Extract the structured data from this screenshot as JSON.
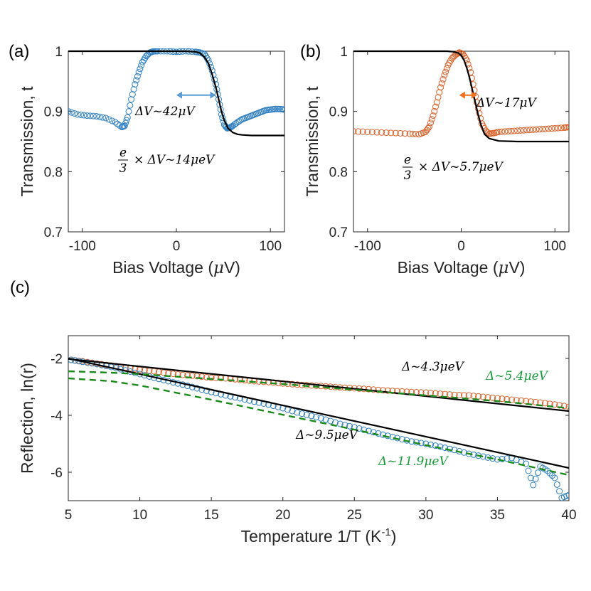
{
  "chart_data": [
    {
      "id": "a",
      "type": "scatter",
      "panel_label": "(a)",
      "xlabel_prefix": "Bias Voltage (",
      "xlabel_unit_symbol": "μ",
      "xlabel_suffix": "V)",
      "ylabel": "Transmission, t",
      "xlim": [
        -115,
        115
      ],
      "ylim": [
        0.7,
        1.0
      ],
      "xticks": [
        -100,
        0,
        100
      ],
      "yticks": [
        0.7,
        0.8,
        0.9,
        1.0
      ],
      "ytick_labels": [
        "0.7",
        "0.8",
        "0.9",
        "1"
      ],
      "colors": {
        "data": "#2f7fc1",
        "fit": "#000000",
        "arrow": "#5b9bd5"
      },
      "series": [
        {
          "name": "data",
          "style": "markers",
          "x": [
            -115,
            -105,
            -95,
            -85,
            -75,
            -65,
            -58,
            -55,
            -52,
            -48,
            -44,
            -40,
            -36,
            -32,
            -28,
            -24,
            -20,
            -10,
            0,
            10,
            20,
            25,
            30,
            34,
            38,
            42,
            45,
            48,
            51,
            54,
            57,
            60,
            65,
            70,
            75,
            80,
            85,
            90,
            95,
            100,
            105,
            110,
            115
          ],
          "y": [
            0.9,
            0.895,
            0.893,
            0.892,
            0.889,
            0.882,
            0.874,
            0.876,
            0.89,
            0.92,
            0.945,
            0.965,
            0.982,
            0.992,
            0.998,
            1.0,
            1.0,
            1.0,
            0.999,
            1.0,
            0.999,
            0.998,
            0.995,
            0.985,
            0.968,
            0.945,
            0.92,
            0.895,
            0.878,
            0.872,
            0.873,
            0.876,
            0.882,
            0.887,
            0.89,
            0.893,
            0.896,
            0.899,
            0.902,
            0.903,
            0.904,
            0.904,
            0.903
          ]
        },
        {
          "name": "fit",
          "style": "line",
          "x": [
            -115,
            10,
            20,
            25,
            30,
            34,
            38,
            42,
            45,
            48,
            51,
            55,
            60,
            65,
            70,
            80,
            115
          ],
          "y": [
            1.0,
            1.0,
            0.999,
            0.997,
            0.99,
            0.98,
            0.962,
            0.94,
            0.92,
            0.9,
            0.885,
            0.872,
            0.865,
            0.862,
            0.861,
            0.86,
            0.86
          ]
        }
      ],
      "annotations": [
        {
          "id": "dv",
          "text": "ΔV~42μV",
          "color": "#000000"
        },
        {
          "id": "energy",
          "text_prefix": "× ΔV~14μeV",
          "frac_num": "e",
          "frac_den": "3",
          "color": "#000000"
        }
      ],
      "arrow": {
        "x_from": 0,
        "x_to": 42,
        "y": 0.927
      }
    },
    {
      "id": "b",
      "type": "scatter",
      "panel_label": "(b)",
      "xlabel_prefix": "Bias Voltage (",
      "xlabel_unit_symbol": "μ",
      "xlabel_suffix": "V)",
      "ylabel": "Transmission, t",
      "xlim": [
        -115,
        115
      ],
      "ylim": [
        0.7,
        1.0
      ],
      "xticks": [
        -100,
        0,
        100
      ],
      "yticks": [
        0.7,
        0.8,
        0.9,
        1.0
      ],
      "ytick_labels": [
        "0.7",
        "0.8",
        "0.9",
        "1"
      ],
      "colors": {
        "data": "#d9622b",
        "fit": "#000000",
        "arrow": "#f07020"
      },
      "series": [
        {
          "name": "data",
          "style": "markers",
          "x": [
            -115,
            -100,
            -85,
            -70,
            -55,
            -45,
            -38,
            -34,
            -30,
            -26,
            -22,
            -18,
            -14,
            -10,
            -6,
            -2,
            2,
            6,
            10,
            14,
            18,
            22,
            26,
            30,
            35,
            40,
            50,
            60,
            70,
            80,
            90,
            100,
            110,
            115
          ],
          "y": [
            0.867,
            0.866,
            0.865,
            0.864,
            0.863,
            0.862,
            0.866,
            0.875,
            0.893,
            0.915,
            0.94,
            0.96,
            0.977,
            0.988,
            0.994,
            0.998,
            0.995,
            0.985,
            0.965,
            0.935,
            0.905,
            0.88,
            0.868,
            0.863,
            0.864,
            0.866,
            0.867,
            0.868,
            0.869,
            0.87,
            0.871,
            0.872,
            0.873,
            0.874
          ]
        },
        {
          "name": "fit",
          "style": "line",
          "x": [
            -115,
            -15,
            -8,
            -3,
            0,
            3,
            6,
            9,
            12,
            15,
            18,
            21,
            25,
            30,
            40,
            60,
            115
          ],
          "y": [
            1.0,
            1.0,
            0.999,
            0.997,
            0.993,
            0.985,
            0.972,
            0.955,
            0.935,
            0.915,
            0.895,
            0.878,
            0.862,
            0.855,
            0.851,
            0.85,
            0.85
          ]
        }
      ],
      "annotations": [
        {
          "id": "dv",
          "text": "ΔV~17μV",
          "color": "#000000"
        },
        {
          "id": "energy",
          "text_prefix": "× ΔV~5.7μeV",
          "frac_num": "e",
          "frac_den": "3",
          "color": "#000000"
        }
      ],
      "arrow": {
        "x_from": -2,
        "x_to": 17,
        "y": 0.927
      }
    },
    {
      "id": "c",
      "type": "scatter",
      "panel_label": "(c)",
      "xlabel_prefix": "Temperature 1/T (K",
      "xlabel_sup": "-1",
      "xlabel_suffix": ")",
      "ylabel": "Reflection, ln(r)",
      "xlim": [
        5,
        40
      ],
      "ylim": [
        -7,
        -1.2
      ],
      "xticks": [
        5,
        10,
        15,
        20,
        25,
        30,
        35,
        40
      ],
      "yticks": [
        -2,
        -4,
        -6
      ],
      "ytick_labels": [
        "-2",
        "-4",
        "-6"
      ],
      "colors": {
        "orange": "#d9622b",
        "blue": "#2f7fc1",
        "fit": "#000000",
        "green": "#1a8a1a"
      },
      "series": [
        {
          "name": "orange-data",
          "style": "markers",
          "color": "orange",
          "x": [
            5.2,
            6,
            7,
            8,
            9,
            10,
            11,
            12,
            13,
            14,
            15,
            16,
            17,
            18,
            19,
            20,
            21,
            22,
            23,
            24,
            25,
            26,
            27,
            28,
            29,
            30,
            31,
            32,
            33,
            34,
            35,
            36,
            37,
            38,
            39,
            40
          ],
          "y": [
            -2.05,
            -2.1,
            -2.18,
            -2.25,
            -2.32,
            -2.4,
            -2.45,
            -2.52,
            -2.58,
            -2.62,
            -2.68,
            -2.7,
            -2.75,
            -2.8,
            -2.83,
            -2.88,
            -2.92,
            -2.95,
            -2.98,
            -3.02,
            -3.05,
            -3.08,
            -3.12,
            -3.15,
            -3.18,
            -3.2,
            -3.24,
            -3.28,
            -3.3,
            -3.35,
            -3.4,
            -3.45,
            -3.5,
            -3.55,
            -3.62,
            -3.7
          ]
        },
        {
          "name": "blue-data",
          "style": "markers",
          "color": "blue",
          "x": [
            5.2,
            6,
            7,
            8,
            9,
            10,
            11,
            12,
            13,
            14,
            15,
            16,
            17,
            18,
            19,
            20,
            21,
            22,
            23,
            24,
            25,
            26,
            27,
            28,
            29,
            30,
            31,
            32,
            33,
            34,
            35,
            36,
            37,
            37.5,
            38,
            38.5,
            39,
            39.5,
            40
          ],
          "y": [
            -2.05,
            -2.12,
            -2.2,
            -2.3,
            -2.42,
            -2.55,
            -2.68,
            -2.8,
            -2.92,
            -3.05,
            -3.18,
            -3.3,
            -3.4,
            -3.52,
            -3.62,
            -3.75,
            -3.9,
            -4.02,
            -4.15,
            -4.3,
            -4.42,
            -4.55,
            -4.68,
            -4.8,
            -4.92,
            -5.0,
            -5.1,
            -5.22,
            -5.35,
            -5.45,
            -5.55,
            -5.5,
            -5.7,
            -6.45,
            -5.8,
            -5.95,
            -6.2,
            -6.9,
            -6.8
          ]
        },
        {
          "name": "fit-upper",
          "style": "line",
          "color": "fit",
          "x": [
            5,
            40
          ],
          "y": [
            -2.02,
            -3.85
          ]
        },
        {
          "name": "fit-lower",
          "style": "line",
          "color": "fit",
          "x": [
            5,
            40
          ],
          "y": [
            -2.0,
            -5.85
          ]
        },
        {
          "name": "green-upper",
          "style": "dashed",
          "color": "green",
          "x": [
            5,
            8,
            10,
            12,
            15,
            20,
            25,
            30,
            35,
            40
          ],
          "y": [
            -2.45,
            -2.5,
            -2.55,
            -2.62,
            -2.72,
            -2.9,
            -3.1,
            -3.3,
            -3.5,
            -3.75
          ]
        },
        {
          "name": "green-lower",
          "style": "dashed",
          "color": "green",
          "x": [
            5,
            8,
            10,
            12,
            15,
            20,
            25,
            30,
            35,
            40
          ],
          "y": [
            -2.7,
            -2.8,
            -2.95,
            -3.15,
            -3.45,
            -3.98,
            -4.5,
            -5.05,
            -5.55,
            -6.1
          ]
        }
      ],
      "annotations": [
        {
          "id": "d1",
          "text": "Δ~4.3μeV",
          "color": "#000000"
        },
        {
          "id": "d2",
          "text": "Δ~5.4μeV",
          "color": "#1a9a3a"
        },
        {
          "id": "d3",
          "text": "Δ~9.5μeV",
          "color": "#000000"
        },
        {
          "id": "d4",
          "text": "Δ~11.9μeV",
          "color": "#1a9a3a"
        }
      ]
    }
  ]
}
